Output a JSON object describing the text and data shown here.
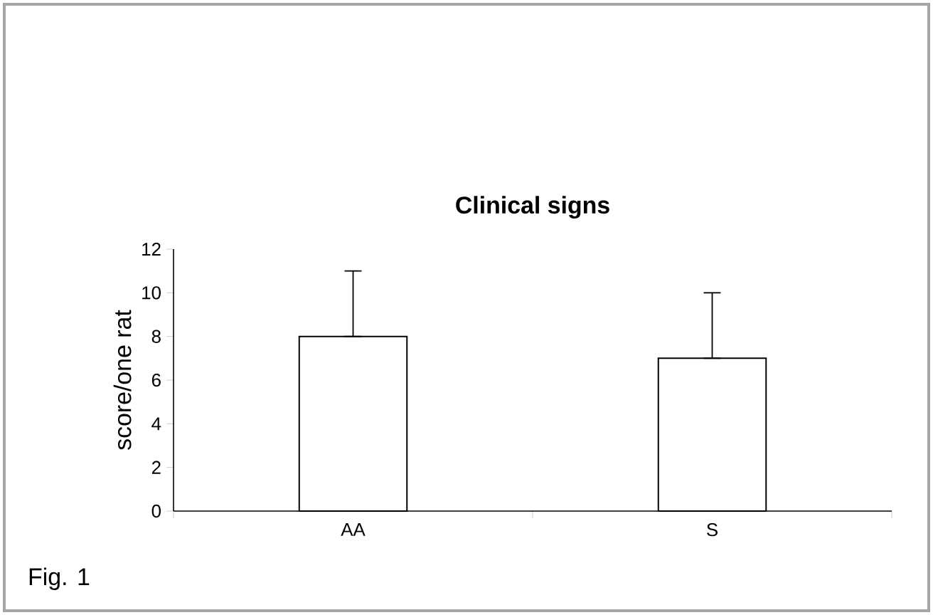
{
  "chart_data": {
    "type": "bar",
    "title": "Clinical signs",
    "ylabel": "score/one rat",
    "categories": [
      "AA",
      "S"
    ],
    "values": [
      8,
      7
    ],
    "errors": [
      [
        8,
        11
      ],
      [
        7,
        10
      ]
    ],
    "ylim": [
      0,
      12
    ],
    "yticks": [
      0,
      2,
      4,
      6,
      8,
      10,
      12
    ],
    "grid": false,
    "annotations": [
      "Fig. 1"
    ]
  }
}
